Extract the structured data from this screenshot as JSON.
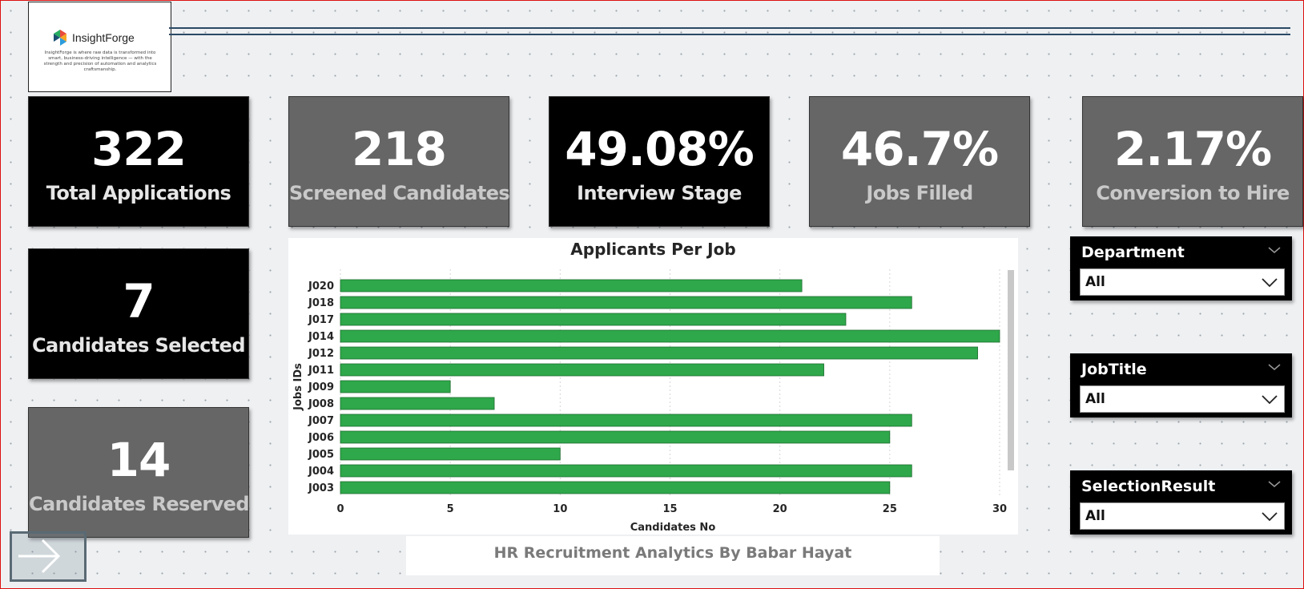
{
  "logo": {
    "name": "InsightForge",
    "tagline": "InsightForge is where raw data is transformed into smart, business-driving intelligence — with the strength and precision of automation and analytics craftsmanship."
  },
  "kpis": {
    "total_applications": {
      "value": "322",
      "label": "Total Applications"
    },
    "screened_candidates": {
      "value": "218",
      "label": "Screened Candidates"
    },
    "interview_stage": {
      "value": "49.08%",
      "label": "Interview Stage"
    },
    "jobs_filled": {
      "value": "46.7%",
      "label": "Jobs Filled"
    },
    "conversion_to_hire": {
      "value": "2.17%",
      "label": "Conversion to Hire"
    },
    "candidates_selected": {
      "value": "7",
      "label": "Candidates Selected"
    },
    "candidates_reserved": {
      "value": "14",
      "label": "Candidates Reserved"
    }
  },
  "chart_data": {
    "type": "bar",
    "orientation": "horizontal",
    "title": "Applicants Per Job",
    "xlabel": "Candidates No",
    "ylabel": "Jobs IDs",
    "categories": [
      "J020",
      "J018",
      "J017",
      "J014",
      "J012",
      "J011",
      "J009",
      "J008",
      "J007",
      "J006",
      "J005",
      "J004",
      "J003"
    ],
    "values": [
      21,
      26,
      23,
      30,
      29,
      22,
      5,
      7,
      26,
      25,
      10,
      26,
      25
    ],
    "xlim": [
      0,
      30
    ],
    "xticks": [
      0,
      5,
      10,
      15,
      20,
      25,
      30
    ],
    "bar_color": "#2ea84a",
    "grid": true,
    "legend": "none"
  },
  "footer": {
    "title": "HR Recruitment Analytics By Babar Hayat"
  },
  "slicers": {
    "department": {
      "title": "Department",
      "value": "All"
    },
    "jobtitle": {
      "title": "JobTitle",
      "value": "All"
    },
    "selectionresult": {
      "title": "SelectionResult",
      "value": "All"
    }
  },
  "colors": {
    "card_black": "#000000",
    "card_gray": "#666666",
    "header_line": "#2b4a66",
    "background": "#eef0f2"
  },
  "icons": {
    "nav": "arrow-right-icon",
    "logo": "insightforge-logo-icon"
  }
}
